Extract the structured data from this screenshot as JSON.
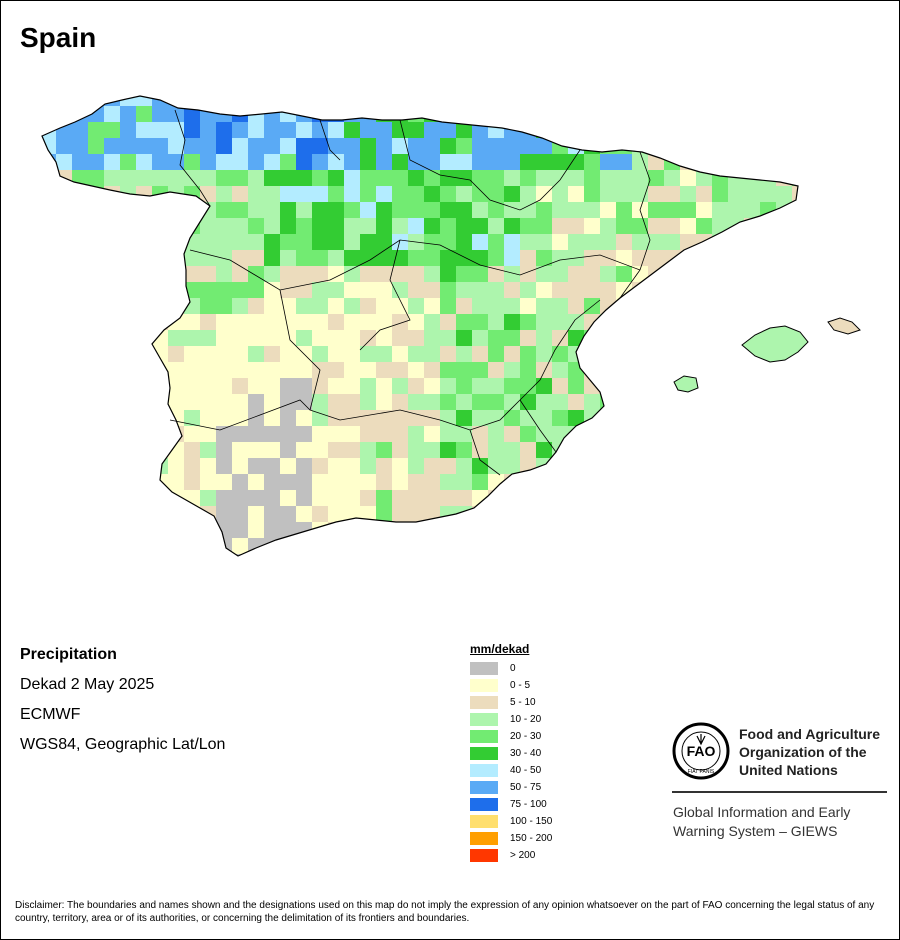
{
  "title": "Spain",
  "info": {
    "variable": "Precipitation",
    "period": "Dekad 2 May 2025",
    "source": "ECMWF",
    "projection": "WGS84, Geographic Lat/Lon"
  },
  "legend": {
    "title": "mm/dekad",
    "items": [
      {
        "label": "0",
        "color": "#c0c0c0"
      },
      {
        "label": "0 - 5",
        "color": "#ffffcc"
      },
      {
        "label": "5 - 10",
        "color": "#ecdcbd"
      },
      {
        "label": "10 - 20",
        "color": "#adf5ad"
      },
      {
        "label": "20 - 30",
        "color": "#72eb72"
      },
      {
        "label": "30 - 40",
        "color": "#33cc33"
      },
      {
        "label": "40 - 50",
        "color": "#b3ecff"
      },
      {
        "label": "50 - 75",
        "color": "#5aaaf5"
      },
      {
        "label": "75 - 100",
        "color": "#1e6eeb"
      },
      {
        "label": "100 - 150",
        "color": "#ffdf6e"
      },
      {
        "label": "150 - 200",
        "color": "#ff9f00"
      },
      {
        "label": "> 200",
        "color": "#ff3700"
      }
    ]
  },
  "organization": {
    "logo_text": "FAO",
    "logo_motto": "FIAT PANIS",
    "name_lines": [
      "Food and Agriculture",
      "Organization of the",
      "United Nations"
    ],
    "system_lines": [
      "Global Information and Early",
      "Warning System – GIEWS"
    ]
  },
  "disclaimer": "Disclaimer: The boundaries and names shown and the designations used on this map do not imply the expression of any opinion whatsoever on the part of FAO concerning the legal status of any country, territory, area or of its authorities, or concerning the delimitation of its frontiers and boundaries."
}
